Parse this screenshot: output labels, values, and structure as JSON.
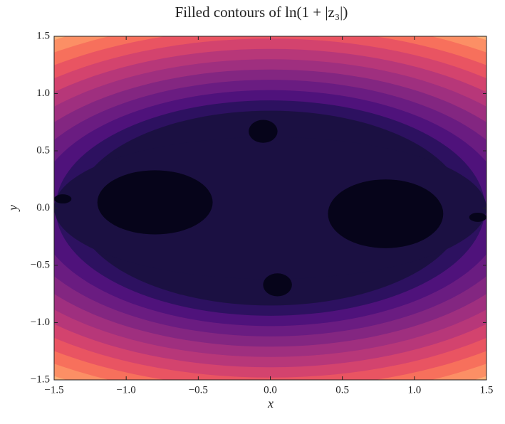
{
  "chart_data": {
    "type": "contourf",
    "title": "Filled contours of ln(1 + |z₃|)",
    "x_label": "x",
    "y_label": "y",
    "xlim": [
      -1.5,
      1.5
    ],
    "ylim": [
      -1.5,
      1.5
    ],
    "xticks": [
      {
        "value": -1.5,
        "label": "−1.5"
      },
      {
        "value": -1.0,
        "label": "−1.0"
      },
      {
        "value": -0.5,
        "label": "−0.5"
      },
      {
        "value": 0.0,
        "label": "0.0"
      },
      0.5,
      {
        "value": 1.0,
        "label": "1.0"
      },
      1.5
    ],
    "yticks": [
      {
        "value": -1.5,
        "label": "−1.5"
      },
      {
        "value": -1.0,
        "label": "−1.0"
      },
      {
        "value": -0.5,
        "label": "−0.5"
      },
      {
        "value": 0.0,
        "label": "0.0"
      },
      0.5,
      {
        "value": 1.0,
        "label": "1.0"
      },
      1.5
    ],
    "colors": [
      "#06041a",
      "#1b1042",
      "#2d1160",
      "#4f127b",
      "#6a1c81",
      "#832681",
      "#9f2f7f",
      "#b73779",
      "#d3436e",
      "#e95462",
      "#f7705c",
      "#fc8f65",
      "#feb078",
      "#fecf92",
      "#fde7a5",
      "#fcf2b8"
    ]
  }
}
